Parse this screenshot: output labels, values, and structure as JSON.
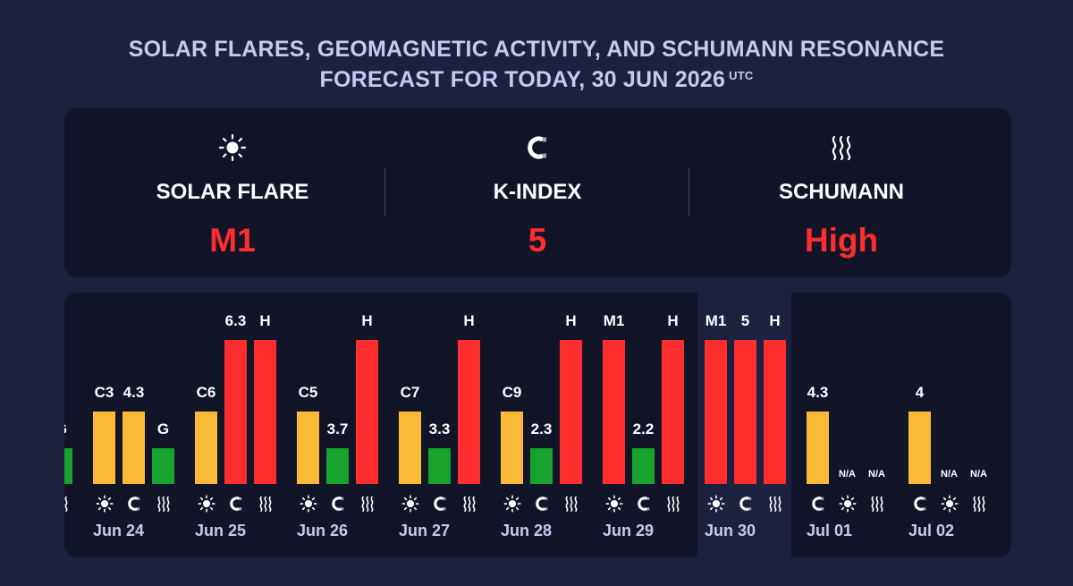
{
  "title": {
    "line1": "SOLAR FLARES, GEOMAGNETIC ACTIVITY, AND SCHUMANN RESONANCE",
    "line2": "FORECAST FOR TODAY, 30 JUN 2026",
    "tz": "UTC"
  },
  "summary": [
    {
      "icon": "sun-icon",
      "label": "SOLAR FLARE",
      "value": "M1"
    },
    {
      "icon": "magnet-icon",
      "label": "K-INDEX",
      "value": "5"
    },
    {
      "icon": "waves-icon",
      "label": "SCHUMANN",
      "value": "High"
    }
  ],
  "colors": {
    "background": "#1c2140",
    "panel": "#121528",
    "title": "#c9c8f2",
    "red": "#ff2e2e",
    "yellow": "#fbb938",
    "green": "#16a22d"
  },
  "chart_data": {
    "type": "bar",
    "series": [
      {
        "metric": "solar flare",
        "icon": "sun-icon"
      },
      {
        "metric": "k-index",
        "icon": "magnet-icon"
      },
      {
        "metric": "schumann",
        "icon": "waves-icon"
      }
    ],
    "days": [
      {
        "date": "",
        "partial": true,
        "bars": [
          {
            "type": "schumann",
            "label": "G",
            "level": 0.25,
            "color": "green"
          }
        ]
      },
      {
        "date": "Jun 24",
        "bars": [
          {
            "type": "flare",
            "label": "C3",
            "level": 0.5,
            "color": "yellow"
          },
          {
            "type": "kindex",
            "label": "4.3",
            "level": 0.5,
            "color": "yellow"
          },
          {
            "type": "schumann",
            "label": "G",
            "level": 0.25,
            "color": "green"
          }
        ]
      },
      {
        "date": "Jun 25",
        "bars": [
          {
            "type": "flare",
            "label": "C6",
            "level": 0.5,
            "color": "yellow"
          },
          {
            "type": "kindex",
            "label": "6.3",
            "level": 1.0,
            "color": "red"
          },
          {
            "type": "schumann",
            "label": "H",
            "level": 1.0,
            "color": "red"
          }
        ]
      },
      {
        "date": "Jun 26",
        "bars": [
          {
            "type": "flare",
            "label": "C5",
            "level": 0.5,
            "color": "yellow"
          },
          {
            "type": "kindex",
            "label": "3.7",
            "level": 0.25,
            "color": "green"
          },
          {
            "type": "schumann",
            "label": "H",
            "level": 1.0,
            "color": "red"
          }
        ]
      },
      {
        "date": "Jun 27",
        "bars": [
          {
            "type": "flare",
            "label": "C7",
            "level": 0.5,
            "color": "yellow"
          },
          {
            "type": "kindex",
            "label": "3.3",
            "level": 0.25,
            "color": "green"
          },
          {
            "type": "schumann",
            "label": "H",
            "level": 1.0,
            "color": "red"
          }
        ]
      },
      {
        "date": "Jun 28",
        "bars": [
          {
            "type": "flare",
            "label": "C9",
            "level": 0.5,
            "color": "yellow"
          },
          {
            "type": "kindex",
            "label": "2.3",
            "level": 0.25,
            "color": "green"
          },
          {
            "type": "schumann",
            "label": "H",
            "level": 1.0,
            "color": "red"
          }
        ]
      },
      {
        "date": "Jun 29",
        "bars": [
          {
            "type": "flare",
            "label": "M1",
            "level": 1.0,
            "color": "red"
          },
          {
            "type": "kindex",
            "label": "2.2",
            "level": 0.25,
            "color": "green"
          },
          {
            "type": "schumann",
            "label": "H",
            "level": 1.0,
            "color": "red"
          }
        ]
      },
      {
        "date": "Jun 30",
        "today": true,
        "bars": [
          {
            "type": "flare",
            "label": "M1",
            "level": 1.0,
            "color": "red"
          },
          {
            "type": "kindex",
            "label": "5",
            "level": 1.0,
            "color": "red"
          },
          {
            "type": "schumann",
            "label": "H",
            "level": 1.0,
            "color": "red"
          }
        ]
      },
      {
        "date": "Jul 01",
        "bars": [
          {
            "type": "kindex",
            "label": "4.3",
            "level": 0.5,
            "color": "yellow"
          },
          {
            "type": "flare",
            "label": "N/A",
            "level": 0,
            "color": "none"
          },
          {
            "type": "schumann",
            "label": "N/A",
            "level": 0,
            "color": "none"
          }
        ]
      },
      {
        "date": "Jul 02",
        "bars": [
          {
            "type": "kindex",
            "label": "4",
            "level": 0.5,
            "color": "yellow"
          },
          {
            "type": "flare",
            "label": "N/A",
            "level": 0,
            "color": "none"
          },
          {
            "type": "schumann",
            "label": "N/A",
            "level": 0,
            "color": "none"
          }
        ]
      }
    ]
  }
}
